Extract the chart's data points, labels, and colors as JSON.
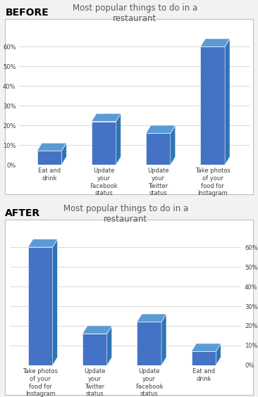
{
  "title": "Most popular things to do in a\nrestaurant",
  "before_label": "BEFORE",
  "after_label": "AFTER",
  "before_categories": [
    "Eat and\ndrink",
    "Update\nyour\nFacebook\nstatus",
    "Update\nyour\nTwitter\nstatus",
    "Take photos\nof your\nfood for\nInstagram"
  ],
  "before_values": [
    0.07,
    0.22,
    0.16,
    0.6
  ],
  "after_categories": [
    "Take photos\nof your\nfood for\nInstagram",
    "Update\nyour\nTwitter\nstatus",
    "Update\nyour\nFacebook\nstatus",
    "Eat and\ndrink"
  ],
  "after_values": [
    0.6,
    0.16,
    0.22,
    0.07
  ],
  "bar_color_front": "#4472C4",
  "bar_color_top": "#5B9BD5",
  "bar_color_side": "#2E75B6",
  "ylim": [
    0,
    0.7
  ],
  "yticks": [
    0.0,
    0.1,
    0.2,
    0.3,
    0.4,
    0.5,
    0.6
  ],
  "ytick_labels": [
    "0%",
    "10%",
    "20%",
    "30%",
    "40%",
    "50%",
    "60%"
  ],
  "page_bg": "#F2F2F2",
  "chart_bg": "#FFFFFF",
  "border_color": "#BFBFBF",
  "title_color": "#595959",
  "title_fontsize": 8.5,
  "tick_fontsize": 6,
  "section_label_fontsize": 10,
  "grid_color": "#D9D9D9",
  "bar_width": 0.45,
  "bar_depth": 0.09
}
